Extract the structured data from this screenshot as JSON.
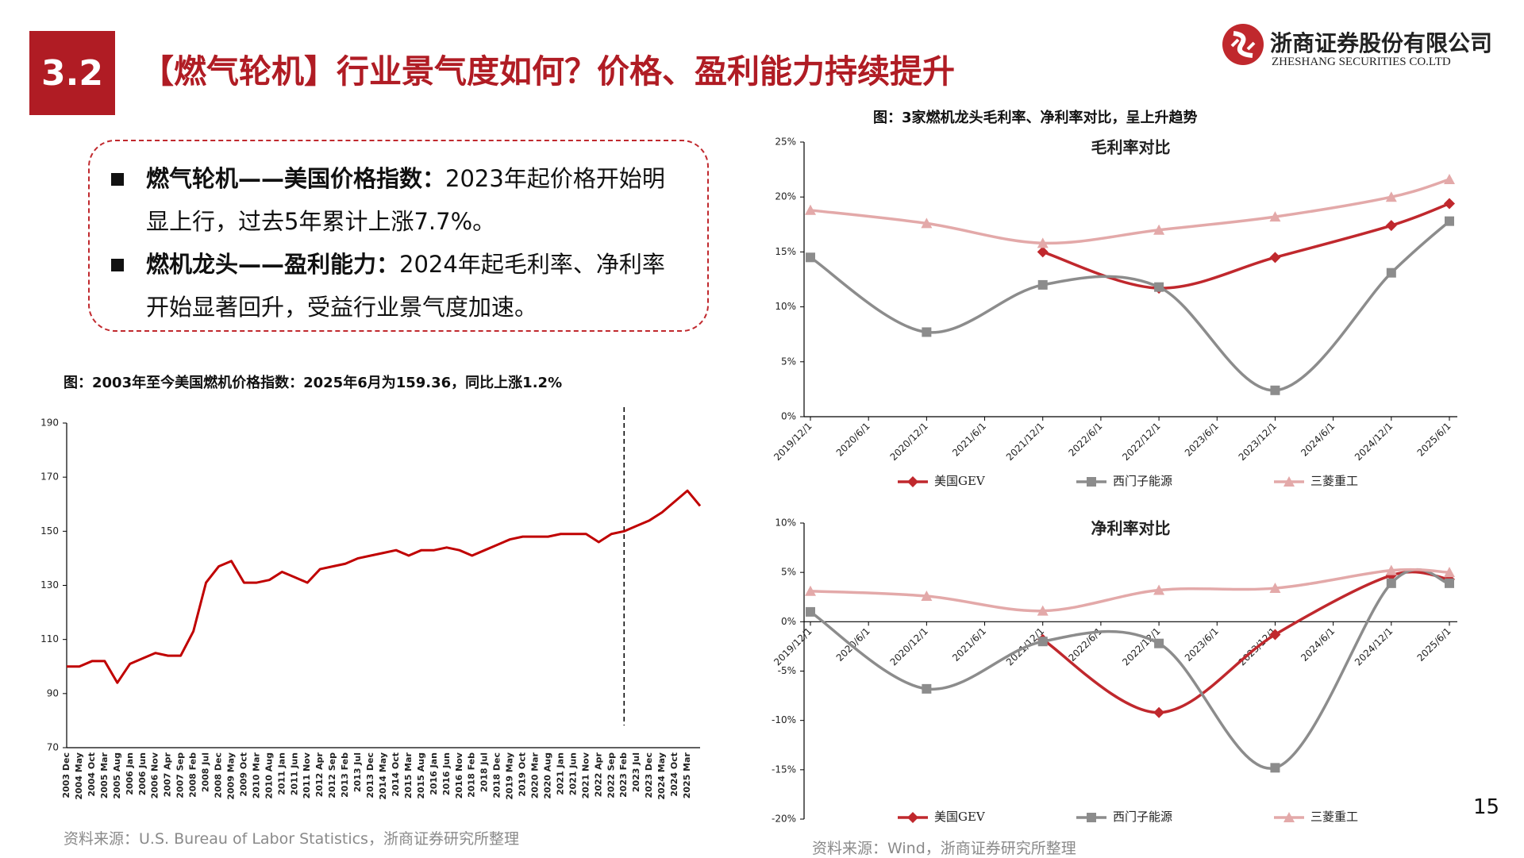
{
  "header": {
    "section": "3.2",
    "title": "【燃气轮机】行业景气度如何？价格、盈利能力持续提升",
    "company": "浙商证券股份有限公司",
    "company_en": "ZHESHANG SECURITIES CO.LTD"
  },
  "bullets": [
    {
      "bold": "燃气轮机——美国价格指数：",
      "text": "2023年起价格开始明显上行，过去5年累计上涨7.7%。"
    },
    {
      "bold": "燃机龙头——盈利能力：",
      "text": "2024年起毛利率、净利率开始显著回升，受益行业景气度加速。"
    }
  ],
  "left_source": "资料来源：U.S. Bureau of Labor Statistics，浙商证券研究所整理",
  "right_caption": "图：3家燃机龙头毛利率、净利率对比，呈上升趋势",
  "right_source": "资料来源：Wind，浙商证券研究所整理",
  "page_number": "15",
  "chart_data": [
    {
      "type": "line",
      "title": "图：2003年至今美国燃机价格指数：2025年6月为159.36，同比上涨1.2%",
      "categories": [
        "2003 Dec",
        "2004 May",
        "2004 Oct",
        "2005 Mar",
        "2005 Aug",
        "2006 Jan",
        "2006 Jun",
        "2006 Nov",
        "2007 Apr",
        "2007 Sep",
        "2008 Feb",
        "2008 Jul",
        "2008 Dec",
        "2009 May",
        "2009 Oct",
        "2010 Mar",
        "2010 Aug",
        "2011 Jan",
        "2011 Jun",
        "2011 Nov",
        "2012 Apr",
        "2012 Sep",
        "2013 Feb",
        "2013 Jul",
        "2013 Dec",
        "2014 May",
        "2014 Oct",
        "2015 Mar",
        "2015 Aug",
        "2016 Jan",
        "2016 Jun",
        "2016 Nov",
        "2018 Feb",
        "2018 Jul",
        "2018 Dec",
        "2019 May",
        "2019 Oct",
        "2020 Mar",
        "2020 Aug",
        "2021 Jan",
        "2021 Jun",
        "2021 Nov",
        "2022 Apr",
        "2022 Sep",
        "2023 Feb",
        "2023 Jul",
        "2023 Dec",
        "2024 May",
        "2024 Oct",
        "2025 Mar",
        null
      ],
      "series": [
        {
          "color": "#c00000",
          "values": [
            100,
            100,
            102,
            102,
            94,
            101,
            103,
            105,
            104,
            104,
            113,
            131,
            137,
            139,
            131,
            131,
            132,
            135,
            133,
            131,
            136,
            137,
            138,
            140,
            141,
            142,
            143,
            141,
            143,
            143,
            144,
            143,
            141,
            143,
            145,
            147,
            148,
            148,
            148,
            149,
            149,
            149,
            146,
            149,
            150,
            152,
            154,
            157,
            161,
            165,
            159.36
          ]
        }
      ],
      "ylim": [
        70,
        190
      ],
      "yticks": [
        70,
        90,
        110,
        130,
        150,
        170,
        190
      ],
      "grid": false,
      "vline": {
        "x": "2023 Feb",
        "style": "dashed"
      }
    },
    {
      "type": "line",
      "title": "毛利率对比",
      "smooth": true,
      "span_gaps": true,
      "legend": "bottom",
      "categories": [
        "2019/12/1",
        "2020/6/1",
        "2020/12/1",
        "2021/6/1",
        "2021/12/1",
        "2022/6/1",
        "2022/12/1",
        "2023/6/1",
        "2023/12/1",
        "2024/6/1",
        "2024/12/1",
        "2025/6/1"
      ],
      "series": [
        {
          "name": "美国GEV",
          "color": "#c0282d",
          "marker": "diamond",
          "values": [
            null,
            null,
            null,
            null,
            15.0,
            null,
            11.7,
            null,
            14.5,
            null,
            17.4,
            19.4
          ]
        },
        {
          "name": "西门子能源",
          "color": "#8c8c8c",
          "marker": "square",
          "values": [
            14.5,
            null,
            7.7,
            null,
            12.0,
            null,
            11.8,
            null,
            2.4,
            null,
            13.1,
            17.8
          ]
        },
        {
          "name": "三菱重工",
          "color": "#e3a9a9",
          "marker": "triangle",
          "values": [
            18.8,
            null,
            17.6,
            null,
            15.8,
            null,
            17.0,
            null,
            18.2,
            null,
            20.0,
            21.6
          ]
        }
      ],
      "ylim": [
        0,
        25
      ],
      "yticks": [
        {
          "value": 0,
          "label": "0%"
        },
        {
          "value": 5,
          "label": "5%"
        },
        {
          "value": 10,
          "label": "10%"
        },
        {
          "value": 15,
          "label": "15%"
        },
        {
          "value": 20,
          "label": "20%"
        },
        {
          "value": 25,
          "label": "25%"
        }
      ],
      "grid": false
    },
    {
      "type": "line",
      "title": "净利率对比",
      "smooth": true,
      "span_gaps": true,
      "legend": "bottom",
      "categories": [
        "2019/12/1",
        "2020/6/1",
        "2020/12/1",
        "2021/6/1",
        "2021/12/1",
        "2022/6/1",
        "2022/12/1",
        "2023/6/1",
        "2023/12/1",
        "2024/6/1",
        "2024/12/1",
        "2025/6/1"
      ],
      "series": [
        {
          "name": "美国GEV",
          "color": "#c0282d",
          "marker": "diamond",
          "values": [
            null,
            null,
            null,
            null,
            -1.8,
            null,
            -9.2,
            null,
            -1.3,
            null,
            4.7,
            4.3
          ]
        },
        {
          "name": "西门子能源",
          "color": "#8c8c8c",
          "marker": "square",
          "values": [
            1.0,
            null,
            -6.8,
            null,
            -2.0,
            null,
            -2.2,
            null,
            -14.8,
            null,
            3.9,
            3.9
          ]
        },
        {
          "name": "三菱重工",
          "color": "#e3a9a9",
          "marker": "triangle",
          "values": [
            3.1,
            null,
            2.6,
            null,
            1.1,
            null,
            3.2,
            null,
            3.4,
            null,
            5.2,
            5.0
          ]
        }
      ],
      "ylim": [
        -20,
        10
      ],
      "yticks": [
        {
          "value": -20,
          "label": "-20%"
        },
        {
          "value": -15,
          "label": "-15%"
        },
        {
          "value": -10,
          "label": "-10%"
        },
        {
          "value": -5,
          "label": "-5%"
        },
        {
          "value": 0,
          "label": "0%"
        },
        {
          "value": 5,
          "label": "5%"
        },
        {
          "value": 10,
          "label": "10%"
        }
      ],
      "grid": false
    }
  ]
}
